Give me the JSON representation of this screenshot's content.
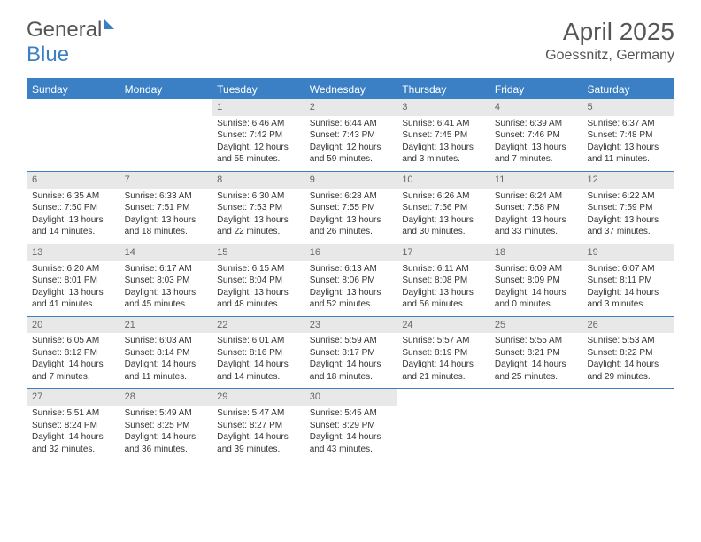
{
  "brand": {
    "name_gray": "General",
    "name_blue": "Blue"
  },
  "title": "April 2025",
  "location": "Goessnitz, Germany",
  "colors": {
    "header_bar": "#3b7fc4",
    "day_num_bg": "#e8e8e8",
    "text": "#333333",
    "muted": "#666666",
    "background": "#ffffff"
  },
  "weekdays": [
    "Sunday",
    "Monday",
    "Tuesday",
    "Wednesday",
    "Thursday",
    "Friday",
    "Saturday"
  ],
  "layout": {
    "columns": 7,
    "rows": 5,
    "first_weekday_index": 2
  },
  "weeks": [
    [
      {
        "empty": true
      },
      {
        "empty": true
      },
      {
        "num": "1",
        "sunrise": "Sunrise: 6:46 AM",
        "sunset": "Sunset: 7:42 PM",
        "daylight": "Daylight: 12 hours and 55 minutes."
      },
      {
        "num": "2",
        "sunrise": "Sunrise: 6:44 AM",
        "sunset": "Sunset: 7:43 PM",
        "daylight": "Daylight: 12 hours and 59 minutes."
      },
      {
        "num": "3",
        "sunrise": "Sunrise: 6:41 AM",
        "sunset": "Sunset: 7:45 PM",
        "daylight": "Daylight: 13 hours and 3 minutes."
      },
      {
        "num": "4",
        "sunrise": "Sunrise: 6:39 AM",
        "sunset": "Sunset: 7:46 PM",
        "daylight": "Daylight: 13 hours and 7 minutes."
      },
      {
        "num": "5",
        "sunrise": "Sunrise: 6:37 AM",
        "sunset": "Sunset: 7:48 PM",
        "daylight": "Daylight: 13 hours and 11 minutes."
      }
    ],
    [
      {
        "num": "6",
        "sunrise": "Sunrise: 6:35 AM",
        "sunset": "Sunset: 7:50 PM",
        "daylight": "Daylight: 13 hours and 14 minutes."
      },
      {
        "num": "7",
        "sunrise": "Sunrise: 6:33 AM",
        "sunset": "Sunset: 7:51 PM",
        "daylight": "Daylight: 13 hours and 18 minutes."
      },
      {
        "num": "8",
        "sunrise": "Sunrise: 6:30 AM",
        "sunset": "Sunset: 7:53 PM",
        "daylight": "Daylight: 13 hours and 22 minutes."
      },
      {
        "num": "9",
        "sunrise": "Sunrise: 6:28 AM",
        "sunset": "Sunset: 7:55 PM",
        "daylight": "Daylight: 13 hours and 26 minutes."
      },
      {
        "num": "10",
        "sunrise": "Sunrise: 6:26 AM",
        "sunset": "Sunset: 7:56 PM",
        "daylight": "Daylight: 13 hours and 30 minutes."
      },
      {
        "num": "11",
        "sunrise": "Sunrise: 6:24 AM",
        "sunset": "Sunset: 7:58 PM",
        "daylight": "Daylight: 13 hours and 33 minutes."
      },
      {
        "num": "12",
        "sunrise": "Sunrise: 6:22 AM",
        "sunset": "Sunset: 7:59 PM",
        "daylight": "Daylight: 13 hours and 37 minutes."
      }
    ],
    [
      {
        "num": "13",
        "sunrise": "Sunrise: 6:20 AM",
        "sunset": "Sunset: 8:01 PM",
        "daylight": "Daylight: 13 hours and 41 minutes."
      },
      {
        "num": "14",
        "sunrise": "Sunrise: 6:17 AM",
        "sunset": "Sunset: 8:03 PM",
        "daylight": "Daylight: 13 hours and 45 minutes."
      },
      {
        "num": "15",
        "sunrise": "Sunrise: 6:15 AM",
        "sunset": "Sunset: 8:04 PM",
        "daylight": "Daylight: 13 hours and 48 minutes."
      },
      {
        "num": "16",
        "sunrise": "Sunrise: 6:13 AM",
        "sunset": "Sunset: 8:06 PM",
        "daylight": "Daylight: 13 hours and 52 minutes."
      },
      {
        "num": "17",
        "sunrise": "Sunrise: 6:11 AM",
        "sunset": "Sunset: 8:08 PM",
        "daylight": "Daylight: 13 hours and 56 minutes."
      },
      {
        "num": "18",
        "sunrise": "Sunrise: 6:09 AM",
        "sunset": "Sunset: 8:09 PM",
        "daylight": "Daylight: 14 hours and 0 minutes."
      },
      {
        "num": "19",
        "sunrise": "Sunrise: 6:07 AM",
        "sunset": "Sunset: 8:11 PM",
        "daylight": "Daylight: 14 hours and 3 minutes."
      }
    ],
    [
      {
        "num": "20",
        "sunrise": "Sunrise: 6:05 AM",
        "sunset": "Sunset: 8:12 PM",
        "daylight": "Daylight: 14 hours and 7 minutes."
      },
      {
        "num": "21",
        "sunrise": "Sunrise: 6:03 AM",
        "sunset": "Sunset: 8:14 PM",
        "daylight": "Daylight: 14 hours and 11 minutes."
      },
      {
        "num": "22",
        "sunrise": "Sunrise: 6:01 AM",
        "sunset": "Sunset: 8:16 PM",
        "daylight": "Daylight: 14 hours and 14 minutes."
      },
      {
        "num": "23",
        "sunrise": "Sunrise: 5:59 AM",
        "sunset": "Sunset: 8:17 PM",
        "daylight": "Daylight: 14 hours and 18 minutes."
      },
      {
        "num": "24",
        "sunrise": "Sunrise: 5:57 AM",
        "sunset": "Sunset: 8:19 PM",
        "daylight": "Daylight: 14 hours and 21 minutes."
      },
      {
        "num": "25",
        "sunrise": "Sunrise: 5:55 AM",
        "sunset": "Sunset: 8:21 PM",
        "daylight": "Daylight: 14 hours and 25 minutes."
      },
      {
        "num": "26",
        "sunrise": "Sunrise: 5:53 AM",
        "sunset": "Sunset: 8:22 PM",
        "daylight": "Daylight: 14 hours and 29 minutes."
      }
    ],
    [
      {
        "num": "27",
        "sunrise": "Sunrise: 5:51 AM",
        "sunset": "Sunset: 8:24 PM",
        "daylight": "Daylight: 14 hours and 32 minutes."
      },
      {
        "num": "28",
        "sunrise": "Sunrise: 5:49 AM",
        "sunset": "Sunset: 8:25 PM",
        "daylight": "Daylight: 14 hours and 36 minutes."
      },
      {
        "num": "29",
        "sunrise": "Sunrise: 5:47 AM",
        "sunset": "Sunset: 8:27 PM",
        "daylight": "Daylight: 14 hours and 39 minutes."
      },
      {
        "num": "30",
        "sunrise": "Sunrise: 5:45 AM",
        "sunset": "Sunset: 8:29 PM",
        "daylight": "Daylight: 14 hours and 43 minutes."
      },
      {
        "empty": true
      },
      {
        "empty": true
      },
      {
        "empty": true
      }
    ]
  ]
}
